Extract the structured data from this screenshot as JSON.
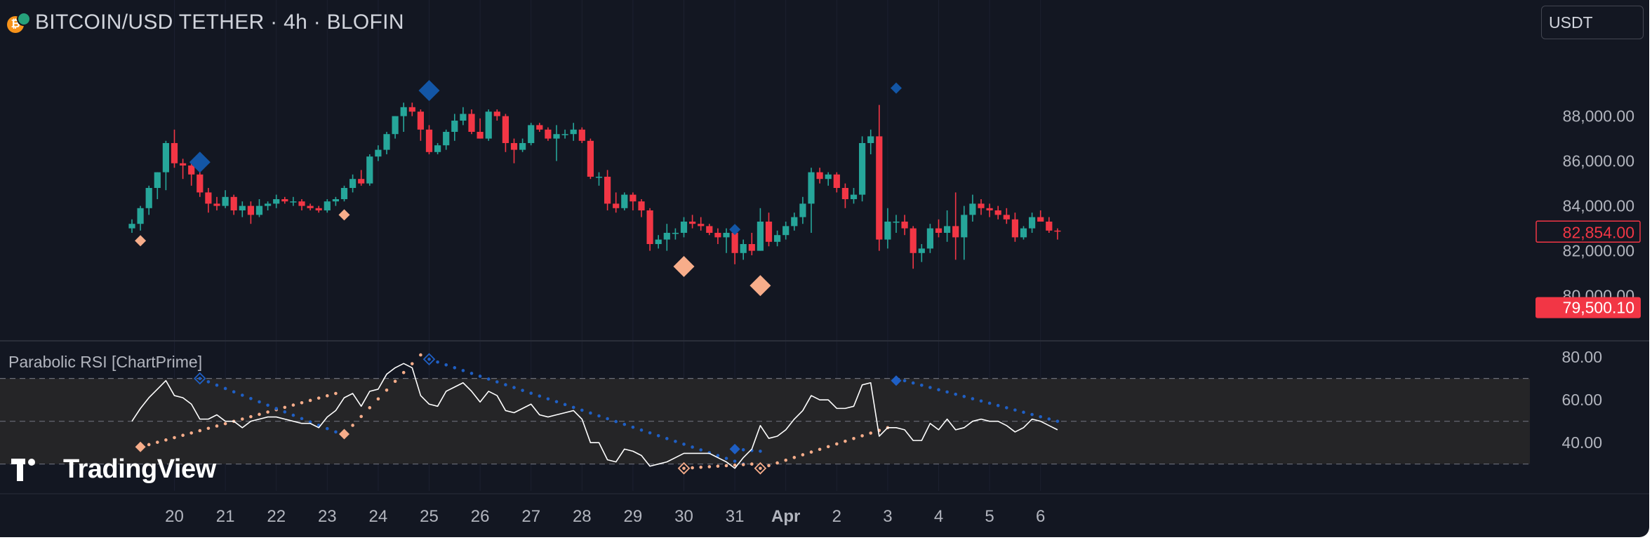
{
  "header": {
    "title": "BITCOIN/USD TETHER · 4h · BLOFIN",
    "currency_button": "USDT"
  },
  "indicator": {
    "label": "Parabolic RSI [ChartPrime]"
  },
  "watermark": "TradingView",
  "colors": {
    "background": "#131722",
    "up": "#26a69a",
    "down": "#f23645",
    "bull_signal": "#f7ad8a",
    "bear_signal": "#1356a6",
    "rsi_line": "#ffffff"
  },
  "chart_data": [
    {
      "type": "candlestick",
      "title": "BITCOIN/USD TETHER · 4h · BLOFIN",
      "ylim": [
        78800,
        89800
      ],
      "y_ticks": [
        80000,
        82000,
        84000,
        86000,
        88000
      ],
      "y_tick_labels": [
        "80,000.00",
        "82,000.00",
        "84,000.00",
        "86,000.00",
        "88,000.00"
      ],
      "x_tick_labels": [
        "20",
        "21",
        "22",
        "23",
        "24",
        "25",
        "26",
        "27",
        "28",
        "29",
        "30",
        "31",
        "Apr",
        "2",
        "3",
        "4",
        "5",
        "6"
      ],
      "x_tick_index": [
        5,
        11,
        17,
        23,
        29,
        35,
        41,
        47,
        53,
        59,
        65,
        71,
        77,
        83,
        89,
        95,
        101,
        107
      ],
      "price_labels": [
        {
          "value": 82854,
          "text": "82,854.00",
          "style": "outline"
        },
        {
          "value": 79500.1,
          "text": "79,500.10",
          "style": "filled"
        }
      ],
      "ohlc": [
        [
          83000,
          83400,
          82800,
          83200
        ],
        [
          83200,
          84000,
          82900,
          83900
        ],
        [
          83900,
          84900,
          83600,
          84800
        ],
        [
          84800,
          85500,
          84300,
          85500
        ],
        [
          85500,
          86900,
          84700,
          86800
        ],
        [
          86800,
          87400,
          85700,
          85900
        ],
        [
          85900,
          86100,
          85200,
          85800
        ],
        [
          85800,
          86000,
          84900,
          85400
        ],
        [
          85400,
          85900,
          84400,
          84600
        ],
        [
          84600,
          84800,
          83700,
          84100
        ],
        [
          84100,
          84400,
          83800,
          84000
        ],
        [
          84000,
          84700,
          83900,
          84400
        ],
        [
          84400,
          84500,
          83600,
          83800
        ],
        [
          83800,
          84200,
          83500,
          84000
        ],
        [
          84000,
          84200,
          83200,
          83600
        ],
        [
          83600,
          84300,
          83500,
          84000
        ],
        [
          84000,
          84200,
          83800,
          84100
        ],
        [
          84100,
          84500,
          83900,
          84300
        ],
        [
          84300,
          84400,
          84100,
          84200
        ],
        [
          84200,
          84400,
          84000,
          84200
        ],
        [
          84200,
          84300,
          83800,
          84000
        ],
        [
          84000,
          84100,
          83800,
          83900
        ],
        [
          83900,
          84000,
          83700,
          83800
        ],
        [
          83800,
          84300,
          83700,
          84200
        ],
        [
          84200,
          84400,
          84000,
          84300
        ],
        [
          84300,
          84900,
          84200,
          84800
        ],
        [
          84800,
          85400,
          84600,
          85200
        ],
        [
          85200,
          85600,
          84900,
          85000
        ],
        [
          85000,
          86300,
          84900,
          86200
        ],
        [
          86200,
          86700,
          86000,
          86500
        ],
        [
          86500,
          87300,
          86300,
          87200
        ],
        [
          87200,
          88000,
          87000,
          88000
        ],
        [
          88000,
          88600,
          87300,
          88400
        ],
        [
          88400,
          88600,
          88000,
          88200
        ],
        [
          88200,
          88300,
          86900,
          87400
        ],
        [
          87400,
          87600,
          86300,
          86400
        ],
        [
          86400,
          86800,
          86300,
          86700
        ],
        [
          86700,
          87400,
          86500,
          87300
        ],
        [
          87300,
          88100,
          86900,
          87800
        ],
        [
          87800,
          88400,
          87600,
          88100
        ],
        [
          88100,
          88300,
          87200,
          87300
        ],
        [
          87300,
          87900,
          87000,
          87000
        ],
        [
          87000,
          88300,
          86900,
          88200
        ],
        [
          88200,
          88300,
          87800,
          88000
        ],
        [
          88000,
          88100,
          86400,
          86800
        ],
        [
          86800,
          87000,
          85900,
          86500
        ],
        [
          86500,
          87000,
          86400,
          86800
        ],
        [
          86800,
          87700,
          86700,
          87600
        ],
        [
          87600,
          87700,
          87300,
          87400
        ],
        [
          87400,
          87500,
          86900,
          87000
        ],
        [
          87000,
          87600,
          86000,
          87200
        ],
        [
          87200,
          87400,
          87000,
          87200
        ],
        [
          87200,
          87700,
          86900,
          87400
        ],
        [
          87400,
          87500,
          86800,
          86900
        ],
        [
          86900,
          87000,
          85200,
          85300
        ],
        [
          85300,
          85500,
          84900,
          85300
        ],
        [
          85300,
          85600,
          83800,
          84100
        ],
        [
          84100,
          84600,
          83700,
          83900
        ],
        [
          83900,
          84600,
          83800,
          84500
        ],
        [
          84500,
          84600,
          83800,
          84200
        ],
        [
          84200,
          84300,
          83500,
          83800
        ],
        [
          83800,
          83900,
          82000,
          82300
        ],
        [
          82300,
          82700,
          82100,
          82500
        ],
        [
          82500,
          83200,
          82000,
          82800
        ],
        [
          82800,
          83000,
          82500,
          82800
        ],
        [
          82800,
          83500,
          82600,
          83300
        ],
        [
          83300,
          83600,
          83000,
          83200
        ],
        [
          83200,
          83500,
          82900,
          83100
        ],
        [
          83100,
          83200,
          82700,
          82800
        ],
        [
          82800,
          83000,
          82300,
          82600
        ],
        [
          82600,
          83000,
          81900,
          82800
        ],
        [
          82800,
          83100,
          81400,
          81900
        ],
        [
          81900,
          82500,
          81600,
          82300
        ],
        [
          82300,
          82800,
          81800,
          82000
        ],
        [
          82000,
          83900,
          82000,
          83300
        ],
        [
          83300,
          83700,
          82200,
          82400
        ],
        [
          82400,
          82900,
          82200,
          82700
        ],
        [
          82700,
          83300,
          82500,
          83100
        ],
        [
          83100,
          83700,
          82900,
          83500
        ],
        [
          83500,
          84400,
          83200,
          84100
        ],
        [
          84100,
          85700,
          82800,
          85500
        ],
        [
          85500,
          85700,
          85000,
          85200
        ],
        [
          85200,
          85500,
          84900,
          85400
        ],
        [
          85400,
          85500,
          84600,
          84800
        ],
        [
          84800,
          85000,
          83900,
          84300
        ],
        [
          84300,
          84800,
          84100,
          84500
        ],
        [
          84500,
          87100,
          84200,
          86800
        ],
        [
          86800,
          87400,
          86300,
          87100
        ],
        [
          87100,
          88500,
          82000,
          82500
        ],
        [
          82500,
          83900,
          82100,
          83300
        ],
        [
          83300,
          83600,
          82800,
          83300
        ],
        [
          83300,
          83600,
          82700,
          83000
        ],
        [
          83000,
          83100,
          81200,
          81900
        ],
        [
          81900,
          82300,
          81500,
          82100
        ],
        [
          82100,
          83200,
          81900,
          83000
        ],
        [
          83000,
          83400,
          82600,
          82800
        ],
        [
          82800,
          83800,
          82400,
          83100
        ],
        [
          83100,
          84600,
          81600,
          82600
        ],
        [
          82600,
          84000,
          81600,
          83600
        ],
        [
          83600,
          84500,
          83300,
          84100
        ],
        [
          84100,
          84300,
          83600,
          83900
        ],
        [
          83900,
          84100,
          83500,
          83800
        ],
        [
          83800,
          84000,
          83400,
          83600
        ],
        [
          83600,
          83900,
          83200,
          83400
        ],
        [
          83400,
          83700,
          82400,
          82600
        ],
        [
          82600,
          83100,
          82500,
          83000
        ],
        [
          83000,
          83700,
          82800,
          83500
        ],
        [
          83500,
          83800,
          83300,
          83300
        ],
        [
          83300,
          83500,
          82800,
          82900
        ],
        [
          82900,
          83000,
          82500,
          82854
        ]
      ],
      "signals": [
        {
          "index": 1,
          "value": 82450,
          "side": "bull",
          "size": "small"
        },
        {
          "index": 8,
          "value": 85950,
          "side": "bear",
          "size": "large"
        },
        {
          "index": 25,
          "value": 83600,
          "side": "bull",
          "size": "small"
        },
        {
          "index": 35,
          "value": 89140,
          "side": "bear",
          "size": "large"
        },
        {
          "index": 65,
          "value": 81300,
          "side": "bull",
          "size": "large"
        },
        {
          "index": 71,
          "value": 82950,
          "side": "bear",
          "size": "small"
        },
        {
          "index": 74,
          "value": 80450,
          "side": "bull",
          "size": "large"
        },
        {
          "index": 90,
          "value": 89250,
          "side": "bear",
          "size": "small"
        }
      ]
    },
    {
      "type": "line",
      "title": "Parabolic RSI [ChartPrime]",
      "ylim": [
        24,
        83
      ],
      "y_ticks": [
        40,
        60,
        80
      ],
      "y_tick_labels": [
        "40.00",
        "60.00",
        "80.00"
      ],
      "levels": [
        30,
        50,
        70
      ],
      "series": [
        {
          "role": "rsi",
          "values": [
            50,
            56,
            61,
            65,
            69,
            62,
            61,
            58,
            51,
            51,
            53,
            50,
            50,
            47,
            50,
            51,
            52,
            52,
            51,
            50,
            49,
            49,
            47,
            52,
            55,
            61,
            63,
            57,
            64,
            65,
            72,
            75,
            77,
            75,
            62,
            58,
            57,
            64,
            66,
            68,
            64,
            59,
            64,
            62,
            55,
            54,
            56,
            58,
            53,
            52,
            53,
            54,
            55,
            51,
            40,
            40,
            32,
            31,
            37,
            36,
            34,
            29,
            30,
            31,
            33,
            35,
            35,
            35,
            35,
            33,
            31,
            28,
            33,
            37,
            48,
            42,
            43,
            46,
            51,
            55,
            62,
            60,
            60,
            56,
            56,
            57,
            67,
            68,
            43,
            47,
            47,
            46,
            41,
            41,
            49,
            46,
            51,
            46,
            47,
            50,
            51,
            50,
            50,
            48,
            45,
            47,
            51,
            50,
            48,
            46
          ]
        },
        {
          "role": "sar",
          "side": "bull",
          "start": 1,
          "end": 24,
          "from": 38,
          "to": 63
        },
        {
          "role": "sar",
          "side": "bull",
          "start": 25,
          "end": 34,
          "from": 44,
          "to": 81
        },
        {
          "role": "sar",
          "side": "bear",
          "start": 8,
          "end": 24,
          "from": 70,
          "to": 45
        },
        {
          "role": "sar",
          "side": "bear",
          "start": 35,
          "end": 72,
          "from": 79,
          "to": 30
        },
        {
          "role": "sar",
          "side": "bull",
          "start": 65,
          "end": 73,
          "from": 28,
          "to": 30
        },
        {
          "role": "sar",
          "side": "bear",
          "start": 71,
          "end": 74,
          "from": 37,
          "to": 36
        },
        {
          "role": "sar",
          "side": "bull",
          "start": 74,
          "end": 89,
          "from": 28,
          "to": 47
        },
        {
          "role": "sar",
          "side": "bear",
          "start": 90,
          "end": 109,
          "from": 70,
          "to": 50
        }
      ],
      "signals": [
        {
          "index": 1,
          "value": 38,
          "side": "bull",
          "fill": true
        },
        {
          "index": 8,
          "value": 70,
          "side": "bear",
          "fill": false
        },
        {
          "index": 25,
          "value": 44,
          "side": "bull",
          "fill": true
        },
        {
          "index": 35,
          "value": 79,
          "side": "bear",
          "fill": false
        },
        {
          "index": 65,
          "value": 28,
          "side": "bull",
          "fill": false
        },
        {
          "index": 71,
          "value": 37,
          "side": "bear",
          "fill": true
        },
        {
          "index": 74,
          "value": 28,
          "side": "bull",
          "fill": false
        },
        {
          "index": 90,
          "value": 69,
          "side": "bear",
          "fill": true
        }
      ]
    }
  ]
}
